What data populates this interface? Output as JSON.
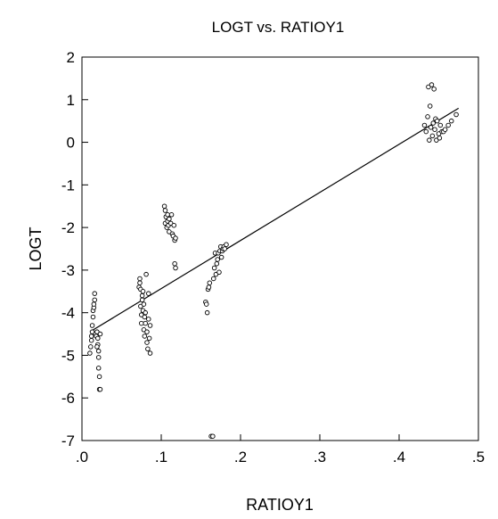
{
  "chart_data": {
    "type": "scatter",
    "title": "LOGT vs. RATIOY1",
    "xlabel": "RATIOY1",
    "ylabel": "LOGT",
    "xlim": [
      0.0,
      0.5
    ],
    "ylim": [
      -7,
      2
    ],
    "x_ticks": [
      {
        "value": 0.0,
        "label": ".0"
      },
      {
        "value": 0.1,
        "label": ".1"
      },
      {
        "value": 0.2,
        "label": ".2"
      },
      {
        "value": 0.3,
        "label": ".3"
      },
      {
        "value": 0.4,
        "label": ".4"
      },
      {
        "value": 0.5,
        "label": ".5"
      }
    ],
    "y_ticks": [
      {
        "value": 2,
        "label": "2"
      },
      {
        "value": 1,
        "label": "1"
      },
      {
        "value": 0,
        "label": "0"
      },
      {
        "value": -1,
        "label": "-1"
      },
      {
        "value": -2,
        "label": "-2"
      },
      {
        "value": -3,
        "label": "-3"
      },
      {
        "value": -4,
        "label": "-4"
      },
      {
        "value": -5,
        "label": "-5"
      },
      {
        "value": -6,
        "label": "-6"
      },
      {
        "value": -7,
        "label": "-7"
      }
    ],
    "grid": false,
    "legend": "none",
    "marker": "open-circle",
    "colors": {
      "points": "#000000",
      "line": "#000000",
      "axes": "#000000"
    },
    "fit_line": {
      "x": [
        0.01,
        0.475
      ],
      "y": [
        -4.45,
        0.8
      ]
    },
    "points": [
      {
        "x": 0.01,
        "y": -4.95
      },
      {
        "x": 0.011,
        "y": -4.8
      },
      {
        "x": 0.012,
        "y": -4.65
      },
      {
        "x": 0.012,
        "y": -4.55
      },
      {
        "x": 0.013,
        "y": -4.45
      },
      {
        "x": 0.013,
        "y": -4.3
      },
      {
        "x": 0.014,
        "y": -4.1
      },
      {
        "x": 0.014,
        "y": -3.95
      },
      {
        "x": 0.015,
        "y": -3.88
      },
      {
        "x": 0.015,
        "y": -3.8
      },
      {
        "x": 0.016,
        "y": -3.7
      },
      {
        "x": 0.016,
        "y": -3.55
      },
      {
        "x": 0.017,
        "y": -4.5
      },
      {
        "x": 0.018,
        "y": -4.55
      },
      {
        "x": 0.019,
        "y": -4.45
      },
      {
        "x": 0.02,
        "y": -4.6
      },
      {
        "x": 0.02,
        "y": -4.75
      },
      {
        "x": 0.021,
        "y": -4.9
      },
      {
        "x": 0.021,
        "y": -5.05
      },
      {
        "x": 0.021,
        "y": -5.3
      },
      {
        "x": 0.022,
        "y": -5.5
      },
      {
        "x": 0.022,
        "y": -5.8
      },
      {
        "x": 0.023,
        "y": -5.8
      },
      {
        "x": 0.019,
        "y": -4.8
      },
      {
        "x": 0.023,
        "y": -4.5
      },
      {
        "x": 0.072,
        "y": -3.4
      },
      {
        "x": 0.073,
        "y": -3.3
      },
      {
        "x": 0.073,
        "y": -3.2
      },
      {
        "x": 0.074,
        "y": -3.45
      },
      {
        "x": 0.074,
        "y": -3.85
      },
      {
        "x": 0.075,
        "y": -4.05
      },
      {
        "x": 0.075,
        "y": -4.25
      },
      {
        "x": 0.076,
        "y": -3.7
      },
      {
        "x": 0.076,
        "y": -3.6
      },
      {
        "x": 0.077,
        "y": -3.95
      },
      {
        "x": 0.077,
        "y": -3.5
      },
      {
        "x": 0.078,
        "y": -3.8
      },
      {
        "x": 0.078,
        "y": -4.4
      },
      {
        "x": 0.079,
        "y": -4.1
      },
      {
        "x": 0.079,
        "y": -4.55
      },
      {
        "x": 0.08,
        "y": -4.0
      },
      {
        "x": 0.08,
        "y": -4.25
      },
      {
        "x": 0.081,
        "y": -3.1
      },
      {
        "x": 0.082,
        "y": -4.7
      },
      {
        "x": 0.082,
        "y": -4.45
      },
      {
        "x": 0.083,
        "y": -4.85
      },
      {
        "x": 0.084,
        "y": -4.15
      },
      {
        "x": 0.084,
        "y": -3.55
      },
      {
        "x": 0.085,
        "y": -4.6
      },
      {
        "x": 0.086,
        "y": -4.95
      },
      {
        "x": 0.086,
        "y": -4.3
      },
      {
        "x": 0.104,
        "y": -1.5
      },
      {
        "x": 0.105,
        "y": -1.6
      },
      {
        "x": 0.105,
        "y": -1.9
      },
      {
        "x": 0.106,
        "y": -1.75
      },
      {
        "x": 0.107,
        "y": -2.0
      },
      {
        "x": 0.108,
        "y": -1.85
      },
      {
        "x": 0.108,
        "y": -1.7
      },
      {
        "x": 0.109,
        "y": -1.95
      },
      {
        "x": 0.11,
        "y": -1.8
      },
      {
        "x": 0.11,
        "y": -2.1
      },
      {
        "x": 0.112,
        "y": -1.9
      },
      {
        "x": 0.113,
        "y": -1.7
      },
      {
        "x": 0.114,
        "y": -2.15
      },
      {
        "x": 0.115,
        "y": -2.2
      },
      {
        "x": 0.116,
        "y": -1.95
      },
      {
        "x": 0.117,
        "y": -2.3
      },
      {
        "x": 0.117,
        "y": -2.85
      },
      {
        "x": 0.118,
        "y": -2.95
      },
      {
        "x": 0.118,
        "y": -2.25
      },
      {
        "x": 0.156,
        "y": -3.75
      },
      {
        "x": 0.157,
        "y": -3.8
      },
      {
        "x": 0.158,
        "y": -4.0
      },
      {
        "x": 0.159,
        "y": -3.45
      },
      {
        "x": 0.16,
        "y": -3.4
      },
      {
        "x": 0.161,
        "y": -3.3
      },
      {
        "x": 0.163,
        "y": -6.9
      },
      {
        "x": 0.165,
        "y": -6.9
      },
      {
        "x": 0.166,
        "y": -3.2
      },
      {
        "x": 0.167,
        "y": -2.95
      },
      {
        "x": 0.168,
        "y": -2.6
      },
      {
        "x": 0.169,
        "y": -3.1
      },
      {
        "x": 0.17,
        "y": -2.85
      },
      {
        "x": 0.171,
        "y": -2.75
      },
      {
        "x": 0.172,
        "y": -2.6
      },
      {
        "x": 0.173,
        "y": -3.05
      },
      {
        "x": 0.174,
        "y": -2.55
      },
      {
        "x": 0.175,
        "y": -2.45
      },
      {
        "x": 0.176,
        "y": -2.7
      },
      {
        "x": 0.177,
        "y": -2.55
      },
      {
        "x": 0.178,
        "y": -2.5
      },
      {
        "x": 0.179,
        "y": -2.45
      },
      {
        "x": 0.18,
        "y": -2.5
      },
      {
        "x": 0.182,
        "y": -2.4
      },
      {
        "x": 0.432,
        "y": 0.4
      },
      {
        "x": 0.434,
        "y": 0.25
      },
      {
        "x": 0.436,
        "y": 0.6
      },
      {
        "x": 0.437,
        "y": 1.3
      },
      {
        "x": 0.438,
        "y": 0.05
      },
      {
        "x": 0.439,
        "y": 0.85
      },
      {
        "x": 0.44,
        "y": 0.35
      },
      {
        "x": 0.441,
        "y": 1.35
      },
      {
        "x": 0.442,
        "y": 0.15
      },
      {
        "x": 0.443,
        "y": 0.45
      },
      {
        "x": 0.444,
        "y": 1.25
      },
      {
        "x": 0.445,
        "y": 0.3
      },
      {
        "x": 0.446,
        "y": 0.55
      },
      {
        "x": 0.447,
        "y": 0.05
      },
      {
        "x": 0.448,
        "y": 0.5
      },
      {
        "x": 0.45,
        "y": 0.2
      },
      {
        "x": 0.451,
        "y": 0.1
      },
      {
        "x": 0.452,
        "y": 0.4
      },
      {
        "x": 0.454,
        "y": 0.25
      },
      {
        "x": 0.456,
        "y": 0.25
      },
      {
        "x": 0.458,
        "y": 0.3
      },
      {
        "x": 0.462,
        "y": 0.4
      },
      {
        "x": 0.466,
        "y": 0.5
      },
      {
        "x": 0.472,
        "y": 0.65
      }
    ]
  }
}
